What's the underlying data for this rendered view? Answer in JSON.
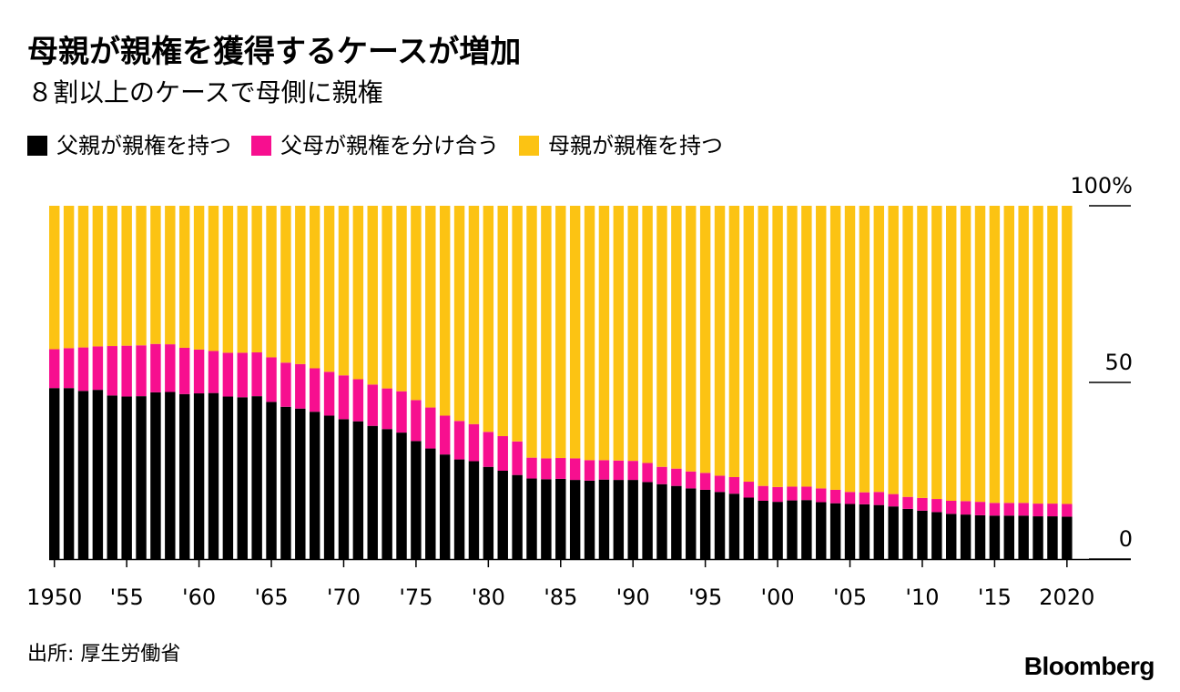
{
  "chart_data": {
    "type": "bar",
    "stacked": true,
    "title": "母親が親権を獲得するケースが増加",
    "subtitle": "８割以上のケースで母側に親権",
    "xlabel": "",
    "ylabel": "",
    "ylim": [
      0,
      100
    ],
    "grid": false,
    "legend_position": "top-left",
    "y_ticks": [
      {
        "value": 100,
        "label": "100%"
      },
      {
        "value": 50,
        "label": "50"
      },
      {
        "value": 0,
        "label": "0"
      }
    ],
    "x_tick_labels": [
      {
        "year": 1950,
        "label": "1950"
      },
      {
        "year": 1955,
        "label": "'55"
      },
      {
        "year": 1960,
        "label": "'60"
      },
      {
        "year": 1965,
        "label": "'65"
      },
      {
        "year": 1970,
        "label": "'70"
      },
      {
        "year": 1975,
        "label": "'75"
      },
      {
        "year": 1980,
        "label": "'80"
      },
      {
        "year": 1985,
        "label": "'85"
      },
      {
        "year": 1990,
        "label": "'90"
      },
      {
        "year": 1995,
        "label": "'95"
      },
      {
        "year": 2000,
        "label": "'00"
      },
      {
        "year": 2005,
        "label": "'05"
      },
      {
        "year": 2010,
        "label": "'10"
      },
      {
        "year": 2015,
        "label": "'15"
      },
      {
        "year": 2020,
        "label": "2020"
      }
    ],
    "categories": [
      1950,
      1951,
      1952,
      1953,
      1954,
      1955,
      1956,
      1957,
      1958,
      1959,
      1960,
      1961,
      1962,
      1963,
      1964,
      1965,
      1966,
      1967,
      1968,
      1969,
      1970,
      1971,
      1972,
      1973,
      1974,
      1975,
      1976,
      1977,
      1978,
      1979,
      1980,
      1981,
      1982,
      1983,
      1984,
      1985,
      1986,
      1987,
      1988,
      1989,
      1990,
      1991,
      1992,
      1993,
      1994,
      1995,
      1996,
      1997,
      1998,
      1999,
      2000,
      2001,
      2002,
      2003,
      2004,
      2005,
      2006,
      2007,
      2008,
      2009,
      2010,
      2011,
      2012,
      2013,
      2014,
      2015,
      2016,
      2017,
      2018,
      2019,
      2020
    ],
    "series": [
      {
        "name": "父親が親権を持つ",
        "color": "#000000",
        "values": [
          48.4,
          48.4,
          47.6,
          47.9,
          46.3,
          46.0,
          46.1,
          47.2,
          47.3,
          46.7,
          46.9,
          47.0,
          46.0,
          45.8,
          46.1,
          44.5,
          43.1,
          42.6,
          41.7,
          40.6,
          39.6,
          39.0,
          37.7,
          36.8,
          35.8,
          33.4,
          31.3,
          29.6,
          28.2,
          27.7,
          26.1,
          25.0,
          23.8,
          22.8,
          22.6,
          22.7,
          22.4,
          22.2,
          22.5,
          22.4,
          22.4,
          21.8,
          21.2,
          20.7,
          20.0,
          19.6,
          19.0,
          18.5,
          17.4,
          16.5,
          16.2,
          16.6,
          16.7,
          16.1,
          15.8,
          15.6,
          15.5,
          15.3,
          14.9,
          14.2,
          13.7,
          13.3,
          12.8,
          12.6,
          12.4,
          12.3,
          12.3,
          12.3,
          12.1,
          12.1,
          12.0
        ]
      },
      {
        "name": "父母が親権を分け合う",
        "color": "#f70f8f",
        "values": [
          11.0,
          11.3,
          12.3,
          12.3,
          14.0,
          14.4,
          14.4,
          13.7,
          13.5,
          13.1,
          12.4,
          11.9,
          12.4,
          12.6,
          12.4,
          12.6,
          12.5,
          12.6,
          12.3,
          12.4,
          12.4,
          11.9,
          11.7,
          11.5,
          11.7,
          11.6,
          11.6,
          11.0,
          10.9,
          10.5,
          9.9,
          9.8,
          9.5,
          5.9,
          5.9,
          5.9,
          6.1,
          5.8,
          5.5,
          5.5,
          5.4,
          5.4,
          4.9,
          4.9,
          4.8,
          4.8,
          4.6,
          4.7,
          4.5,
          4.2,
          4.2,
          3.9,
          3.8,
          3.9,
          3.8,
          3.4,
          3.4,
          3.7,
          3.5,
          3.4,
          3.6,
          3.7,
          3.7,
          3.8,
          3.8,
          3.6,
          3.6,
          3.6,
          3.6,
          3.6,
          3.6
        ]
      },
      {
        "name": "母親が親権を持つ",
        "color": "#fcc313",
        "values": [
          40.6,
          40.3,
          40.1,
          39.8,
          39.7,
          39.6,
          39.5,
          39.1,
          39.2,
          40.2,
          40.7,
          41.1,
          41.6,
          41.6,
          41.5,
          42.9,
          44.4,
          44.8,
          46.0,
          47.0,
          48.0,
          49.1,
          50.6,
          51.7,
          52.5,
          55.0,
          57.1,
          59.4,
          60.9,
          61.8,
          64.0,
          65.2,
          66.7,
          71.3,
          71.5,
          71.4,
          71.5,
          72.0,
          72.0,
          72.1,
          72.2,
          72.8,
          73.9,
          74.4,
          75.2,
          75.6,
          76.4,
          76.8,
          78.1,
          79.3,
          79.6,
          79.5,
          79.5,
          80.0,
          80.4,
          81.0,
          81.1,
          81.0,
          81.6,
          82.4,
          82.7,
          83.0,
          83.5,
          83.6,
          83.8,
          84.1,
          84.1,
          84.1,
          84.3,
          84.3,
          84.4
        ]
      }
    ]
  },
  "footer": {
    "source": "出所: 厚生労働省",
    "brand": "Bloomberg"
  }
}
